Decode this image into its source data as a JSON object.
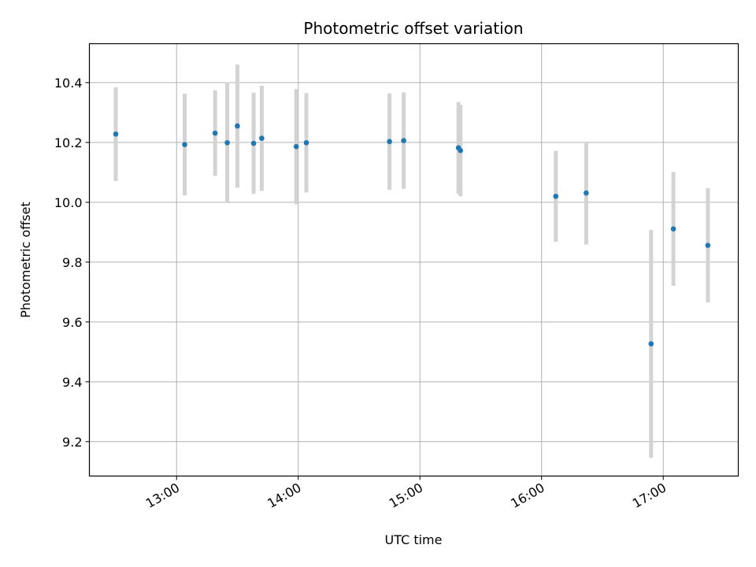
{
  "chart_data": {
    "type": "scatter",
    "title": "Photometric offset variation",
    "xlabel": "UTC time",
    "ylabel": "Photometric offset",
    "x_ticks": [
      "13:00",
      "14:00",
      "15:00",
      "16:00",
      "17:00"
    ],
    "y_ticks": [
      "9.2",
      "9.4",
      "9.6",
      "9.8",
      "10.0",
      "10.2",
      "10.4"
    ],
    "xlim": [
      "12:17",
      "17:37"
    ],
    "ylim": [
      9.085,
      10.53
    ],
    "grid": true,
    "series": [
      {
        "points": [
          {
            "x": "12:30",
            "y": 10.228,
            "yerr": 0.157
          },
          {
            "x": "13:04",
            "y": 10.193,
            "yerr": 0.17
          },
          {
            "x": "13:19",
            "y": 10.231,
            "yerr": 0.143
          },
          {
            "x": "13:25",
            "y": 10.199,
            "yerr": 0.202
          },
          {
            "x": "13:30",
            "y": 10.255,
            "yerr": 0.206
          },
          {
            "x": "13:38",
            "y": 10.197,
            "yerr": 0.169
          },
          {
            "x": "13:42",
            "y": 10.214,
            "yerr": 0.176
          },
          {
            "x": "13:59",
            "y": 10.186,
            "yerr": 0.193
          },
          {
            "x": "14:04",
            "y": 10.199,
            "yerr": 0.166
          },
          {
            "x": "14:45",
            "y": 10.203,
            "yerr": 0.161
          },
          {
            "x": "14:52",
            "y": 10.206,
            "yerr": 0.161
          },
          {
            "x": "15:19",
            "y": 10.182,
            "yerr": 0.153
          },
          {
            "x": "15:20",
            "y": 10.173,
            "yerr": 0.153
          },
          {
            "x": "16:07",
            "y": 10.02,
            "yerr": 0.152
          },
          {
            "x": "16:22",
            "y": 10.031,
            "yerr": 0.172
          },
          {
            "x": "16:54",
            "y": 9.527,
            "yerr": 0.381
          },
          {
            "x": "17:05",
            "y": 9.911,
            "yerr": 0.19
          },
          {
            "x": "17:22",
            "y": 9.856,
            "yerr": 0.191
          }
        ]
      }
    ],
    "colors": {
      "marker": "#1f77b4",
      "errorbar": "#d3d3d3",
      "grid": "#b0b0b0",
      "axes": "#000000"
    }
  }
}
